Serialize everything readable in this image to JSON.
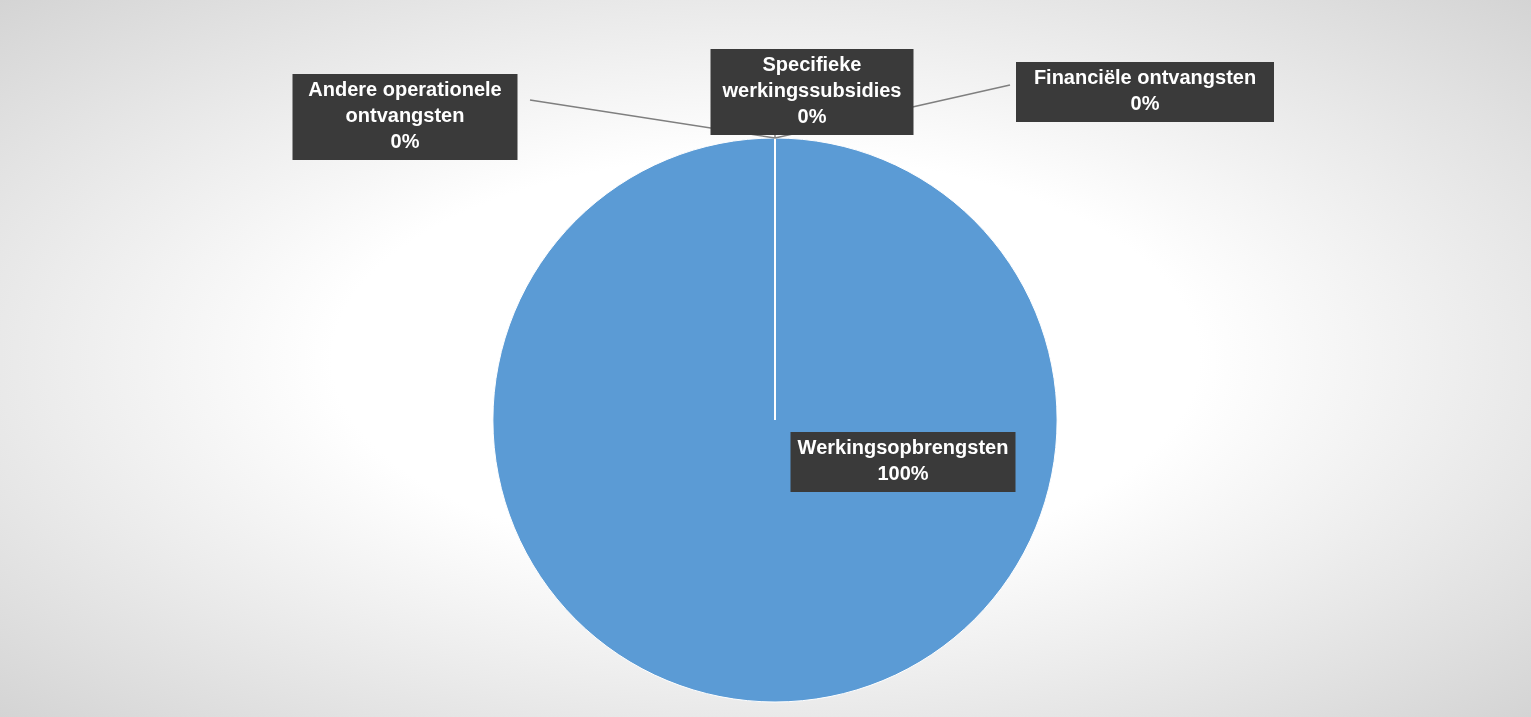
{
  "chart_data": {
    "type": "pie",
    "categories": [
      "Werkingsopbrengsten",
      "Andere operationele ontvangsten",
      "Specifieke werkingssubsidies",
      "Financiële ontvangsten"
    ],
    "values": [
      100,
      0,
      0,
      0
    ],
    "colors": [
      "#5b9bd5",
      "#ed7d31",
      "#a5a5a5",
      "#ffc000"
    ],
    "value_labels": [
      "100%",
      "0%",
      "0%",
      "0%"
    ]
  }
}
